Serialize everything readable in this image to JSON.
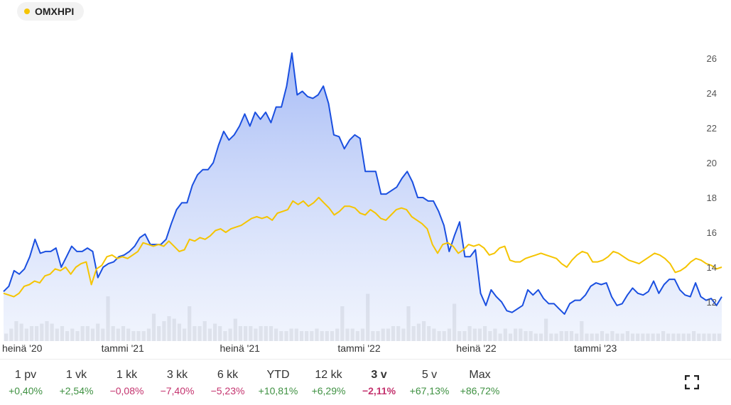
{
  "legend": {
    "label": "OMXHPI",
    "color": "#f5c400"
  },
  "chart_data": {
    "type": "line",
    "x_range": [
      "2020-07-01",
      "2023-07-15"
    ],
    "ylim": [
      11,
      27
    ],
    "yticks": [
      12,
      14,
      16,
      18,
      20,
      22,
      24,
      26
    ],
    "x_tick_labels": [
      {
        "label": "heinä '20",
        "date": "2020-07-01"
      },
      {
        "label": "tammi '21",
        "date": "2021-01-01"
      },
      {
        "label": "heinä '21",
        "date": "2021-07-01"
      },
      {
        "label": "tammi '22",
        "date": "2022-01-01"
      },
      {
        "label": "heinä '22",
        "date": "2022-07-01"
      },
      {
        "label": "tammi '23",
        "date": "2023-01-01"
      }
    ],
    "series": [
      {
        "color": "#1a4fe0",
        "area": true,
        "values": [
          12.6,
          12.9,
          13.8,
          13.6,
          13.9,
          14.6,
          15.6,
          14.8,
          14.9,
          14.9,
          15.1,
          14.0,
          14.6,
          15.2,
          14.9,
          14.9,
          15.1,
          14.9,
          13.4,
          14.0,
          14.2,
          14.3,
          14.6,
          14.7,
          14.9,
          15.2,
          15.7,
          15.9,
          15.3,
          15.3,
          15.3,
          15.6,
          16.5,
          17.3,
          17.7,
          17.7,
          18.7,
          19.3,
          19.6,
          19.6,
          20.0,
          21.0,
          21.8,
          21.3,
          21.6,
          22.1,
          22.8,
          22.1,
          22.9,
          22.5,
          22.9,
          22.3,
          23.2,
          23.2,
          24.4,
          26.3,
          23.9,
          24.1,
          23.8,
          23.7,
          23.9,
          24.4,
          23.4,
          21.6,
          21.5,
          20.8,
          21.3,
          21.6,
          21.4,
          19.5,
          19.5,
          19.5,
          18.2,
          18.2,
          18.4,
          18.6,
          19.1,
          19.5,
          18.9,
          18.0,
          18.0,
          17.8,
          17.8,
          17.2,
          16.4,
          14.9,
          15.8,
          16.6,
          14.6,
          14.6,
          15.0,
          12.5,
          11.8,
          12.7,
          12.3,
          12.0,
          11.5,
          11.4,
          11.6,
          11.8,
          12.7,
          12.4,
          12.7,
          12.2,
          11.9,
          11.9,
          11.6,
          11.3,
          11.9,
          12.1,
          12.1,
          12.4,
          12.9,
          13.1,
          13.0,
          13.1,
          12.3,
          11.8,
          11.9,
          12.4,
          12.8,
          12.5,
          12.4,
          12.6,
          13.2,
          12.5,
          13.0,
          13.3,
          13.3,
          12.7,
          12.4,
          12.3,
          13.1,
          12.3,
          12.1,
          12.2,
          11.8,
          12.3
        ]
      },
      {
        "color": "#f5c400",
        "area": false,
        "values": [
          12.5,
          12.4,
          12.3,
          12.5,
          12.9,
          13.0,
          13.2,
          13.1,
          13.5,
          13.6,
          13.9,
          13.8,
          14.0,
          13.6,
          14.0,
          14.2,
          14.3,
          13.0,
          13.9,
          14.1,
          14.6,
          14.7,
          14.5,
          14.6,
          14.5,
          14.7,
          14.9,
          15.4,
          15.3,
          15.2,
          15.3,
          15.2,
          15.5,
          15.2,
          14.9,
          15.0,
          15.6,
          15.5,
          15.7,
          15.6,
          15.8,
          16.1,
          16.2,
          16.0,
          16.2,
          16.3,
          16.4,
          16.6,
          16.8,
          16.9,
          16.8,
          16.9,
          16.7,
          17.1,
          17.2,
          17.3,
          17.8,
          17.6,
          17.8,
          17.5,
          17.7,
          18.0,
          17.7,
          17.4,
          17.0,
          17.2,
          17.5,
          17.5,
          17.4,
          17.1,
          17.0,
          17.3,
          17.1,
          16.8,
          16.7,
          17.0,
          17.3,
          17.4,
          17.3,
          16.9,
          16.7,
          16.5,
          16.2,
          15.3,
          14.8,
          15.3,
          15.4,
          15.2,
          14.8,
          15.0,
          15.3,
          15.2,
          15.3,
          15.1,
          14.7,
          14.8,
          15.1,
          15.2,
          14.4,
          14.3,
          14.3,
          14.5,
          14.6,
          14.7,
          14.8,
          14.7,
          14.6,
          14.5,
          14.2,
          14.0,
          14.4,
          14.7,
          14.9,
          14.8,
          14.3,
          14.3,
          14.4,
          14.6,
          14.9,
          14.8,
          14.6,
          14.4,
          14.3,
          14.2,
          14.4,
          14.6,
          14.8,
          14.7,
          14.5,
          14.2,
          13.7,
          13.8,
          14.0,
          14.3,
          14.5,
          14.4,
          14.2,
          14.1,
          13.9,
          14.0
        ]
      }
    ],
    "volume": [
      3,
      5,
      8,
      7,
      5,
      6,
      6,
      7,
      8,
      7,
      5,
      6,
      4,
      5,
      4,
      6,
      6,
      5,
      7,
      5,
      7,
      6,
      5,
      6,
      5,
      4,
      4,
      4,
      5,
      6,
      6,
      8,
      10,
      9,
      7,
      5,
      8,
      6,
      6,
      8,
      5,
      7,
      6,
      4,
      5,
      5,
      6,
      6,
      6,
      5,
      6,
      6,
      6,
      5,
      4,
      4,
      5,
      5,
      4,
      4,
      4,
      5,
      4,
      4,
      4,
      5,
      4,
      5,
      5,
      4,
      5,
      5,
      4,
      4,
      5,
      5,
      6,
      6,
      5,
      6,
      6,
      7,
      8,
      6,
      5,
      4,
      4,
      5,
      4,
      4,
      4,
      6,
      5,
      5,
      6,
      4,
      5,
      3,
      5,
      3,
      5,
      5,
      4,
      4,
      3,
      3,
      4,
      3,
      3,
      4,
      4,
      4,
      3,
      3,
      3,
      3,
      3,
      4,
      3,
      4,
      3,
      3,
      4,
      3,
      3,
      3,
      3,
      3,
      3,
      4,
      3,
      3,
      3,
      3,
      3,
      4,
      3,
      3,
      3,
      3,
      3
    ],
    "volume_spikes": {
      "20": 18,
      "29": 11,
      "36": 14,
      "45": 9,
      "66": 14,
      "71": 19,
      "79": 14,
      "88": 15,
      "106": 9,
      "113": 8
    }
  },
  "periods": [
    {
      "label": "1 pv",
      "change": "+0,40%",
      "dir": "pos"
    },
    {
      "label": "1 vk",
      "change": "+2,54%",
      "dir": "pos"
    },
    {
      "label": "1 kk",
      "change": "−0,08%",
      "dir": "neg"
    },
    {
      "label": "3 kk",
      "change": "−7,40%",
      "dir": "neg"
    },
    {
      "label": "6 kk",
      "change": "−5,23%",
      "dir": "neg"
    },
    {
      "label": "YTD",
      "change": "+10,81%",
      "dir": "pos"
    },
    {
      "label": "12 kk",
      "change": "+6,29%",
      "dir": "pos"
    },
    {
      "label": "3 v",
      "change": "−2,11%",
      "dir": "neg",
      "active": true
    },
    {
      "label": "5 v",
      "change": "+67,13%",
      "dir": "pos"
    },
    {
      "label": "Max",
      "change": "+86,72%",
      "dir": "pos"
    }
  ],
  "icons": {
    "expand": "expand-icon"
  }
}
